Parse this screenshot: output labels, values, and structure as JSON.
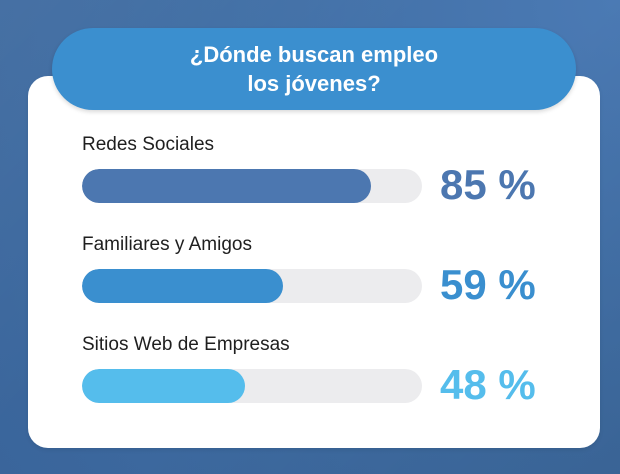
{
  "title": {
    "line1": "¿Dónde buscan empleo",
    "line2": "los jóvenes?"
  },
  "colors": {
    "title_bg": "#3b8fcf",
    "card_bg": "#ffffff",
    "track": "#ececee",
    "background": "#3f6da3"
  },
  "chart_data": {
    "type": "bar",
    "orientation": "horizontal",
    "title": "¿Dónde buscan empleo los jóvenes?",
    "xlim": [
      0,
      100
    ],
    "unit": "%",
    "categories": [
      "Redes Sociales",
      "Familiares y Amigos",
      "Sitios Web de Empresas"
    ],
    "values": [
      85,
      59,
      48
    ],
    "labels": [
      "85 %",
      "59 %",
      "48 %"
    ],
    "colors": [
      "#4c77b0",
      "#3a8fcf",
      "#55bdec"
    ]
  }
}
